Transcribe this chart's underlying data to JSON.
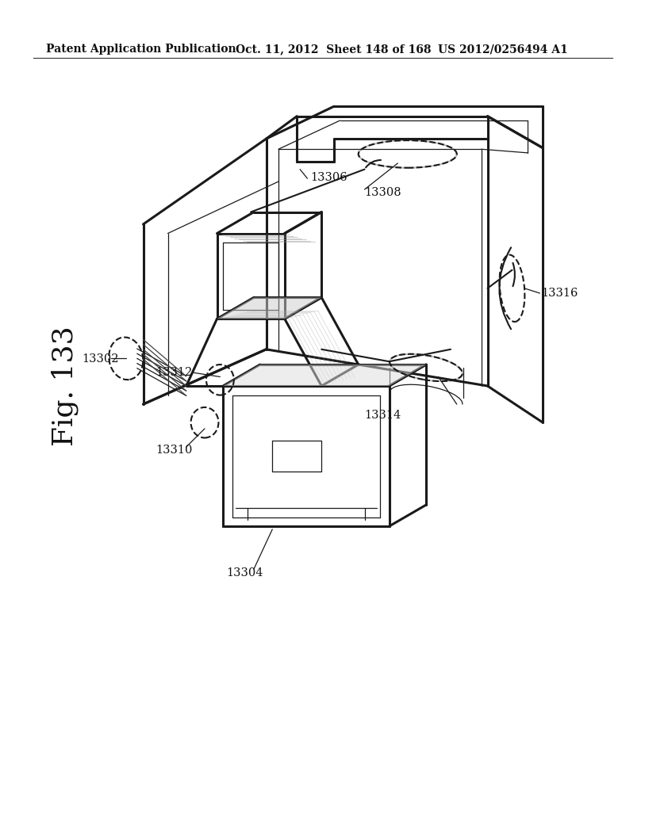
{
  "background_color": "#ffffff",
  "header_left": "Patent Application Publication",
  "header_center": "Oct. 11, 2012  Sheet 148 of 168",
  "header_right": "US 2012/0256494 A1",
  "fig_label": "Fig. 133",
  "line_color": "#1a1a1a",
  "label_color": "#111111",
  "lw_heavy": 2.2,
  "lw_medium": 1.5,
  "lw_thin": 0.9,
  "lw_verylight": 0.6
}
